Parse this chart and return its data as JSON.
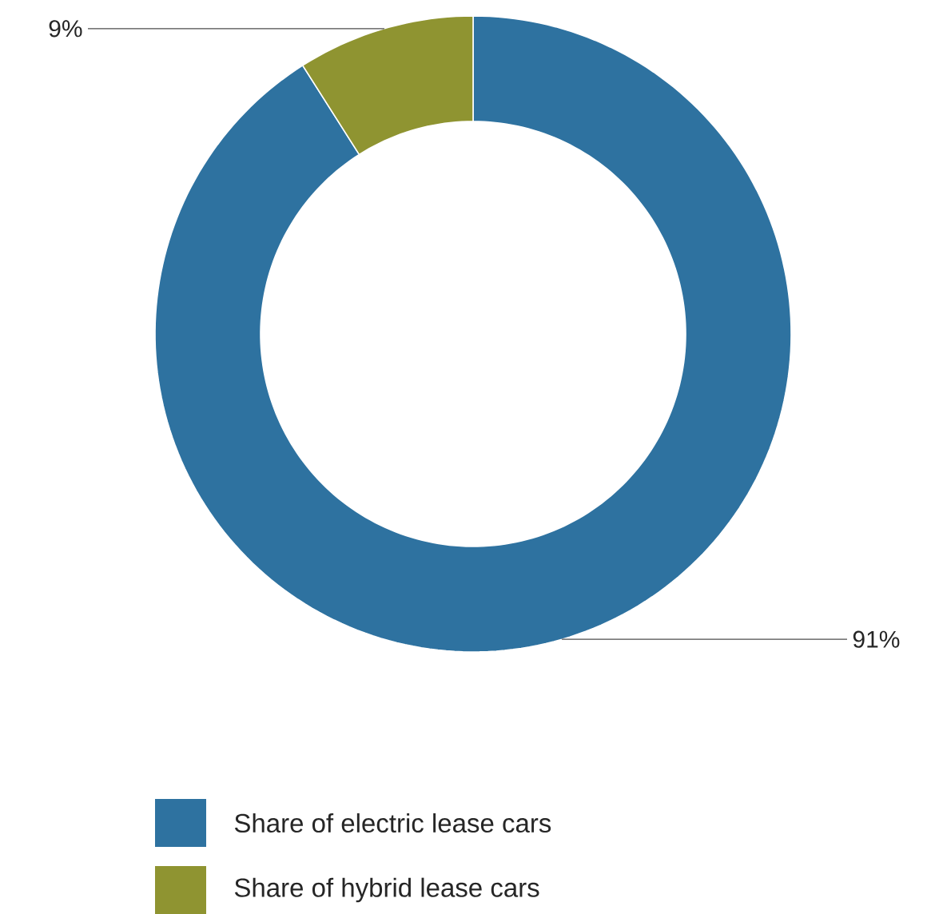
{
  "chart_data": {
    "type": "donut",
    "categories": [
      "Share of electric lease cars",
      "Share of hybrid lease cars"
    ],
    "values": [
      91,
      9
    ],
    "colors": [
      "#2e72a0",
      "#8f9431"
    ],
    "value_labels": [
      "91%",
      "9%"
    ],
    "legend": "bottom"
  }
}
